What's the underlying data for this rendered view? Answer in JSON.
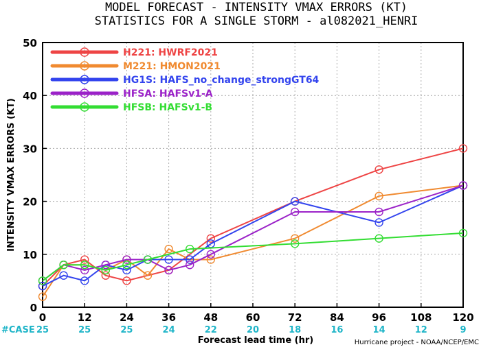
{
  "header": {
    "title_line1": "MODEL FORECAST - INTENSITY VMAX ERRORS (KT)",
    "title_line2": "STATISTICS FOR A SINGLE STORM - al082021_HENRI"
  },
  "footer": {
    "case_label": "#CASE",
    "credit": "Hurricane project - NOAA/NCEP/EMC"
  },
  "chart_data": {
    "type": "line",
    "title": "MODEL FORECAST - INTENSITY VMAX ERRORS (KT)",
    "subtitle": "STATISTICS FOR A SINGLE STORM - al082021_HENRI",
    "xlabel": "Forecast lead time (hr)",
    "ylabel": "INTENSITY VMAX ERRORS (KT)",
    "xlim": [
      0,
      120
    ],
    "ylim": [
      0,
      50
    ],
    "xticks": [
      0,
      12,
      24,
      36,
      48,
      60,
      72,
      84,
      96,
      108,
      120
    ],
    "yticks": [
      0,
      10,
      20,
      30,
      40,
      50
    ],
    "grid": true,
    "legend_position": "top-left",
    "case_counts": [
      25,
      25,
      25,
      24,
      22,
      20,
      18,
      16,
      14,
      12,
      9
    ],
    "series": [
      {
        "name": "H221: HWRF2021",
        "color": "#ee4444",
        "x": [
          0,
          6,
          12,
          18,
          24,
          36,
          48,
          72,
          96,
          120
        ],
        "y": [
          4,
          8,
          9,
          6,
          5,
          7,
          13,
          20,
          26,
          30
        ]
      },
      {
        "name": "M221: HMON2021",
        "color": "#f08a30",
        "x": [
          0,
          6,
          12,
          18,
          24,
          30,
          36,
          42,
          48,
          72,
          96,
          120
        ],
        "y": [
          2,
          8,
          8,
          7,
          9,
          6,
          11,
          9,
          9,
          13,
          21,
          23
        ]
      },
      {
        "name": "HG1S: HAFS_no_change_strongGT64",
        "color": "#3344ee",
        "x": [
          0,
          6,
          12,
          18,
          24,
          30,
          36,
          42,
          48,
          72,
          96,
          120
        ],
        "y": [
          4,
          6,
          5,
          8,
          7,
          9,
          9,
          9,
          12,
          20,
          16,
          23
        ]
      },
      {
        "name": "HFSA: HAFSv1-A",
        "color": "#9b22c8",
        "x": [
          0,
          6,
          12,
          18,
          24,
          30,
          36,
          42,
          48,
          72,
          96,
          120
        ],
        "y": [
          5,
          8,
          7,
          8,
          9,
          9,
          7,
          8,
          10,
          18,
          18,
          23
        ]
      },
      {
        "name": "HFSB: HAFSv1-B",
        "color": "#33dd33",
        "x": [
          0,
          6,
          12,
          18,
          24,
          30,
          42,
          72,
          96,
          120
        ],
        "y": [
          5,
          8,
          8,
          7,
          8,
          9,
          11,
          12,
          13,
          14
        ]
      }
    ]
  }
}
